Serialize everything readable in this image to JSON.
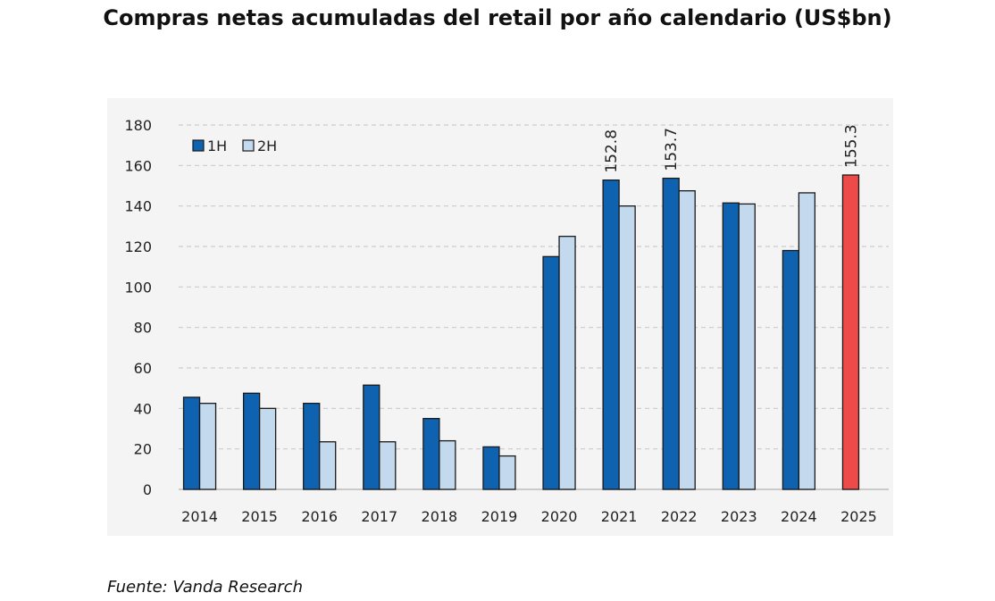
{
  "title": "Compras netas acumuladas del retail por año calendario (US$bn)",
  "source": "Fuente: Vanda Research",
  "colors": {
    "h1": "#0f62b0",
    "h2": "#c3d9ee",
    "highlight": "#ef4a4a",
    "grid": "#cccccc",
    "plot_bg": "#f4f4f4"
  },
  "chart_data": {
    "type": "bar",
    "title": "Compras netas acumuladas del retail por año calendario (US$bn)",
    "xlabel": "",
    "ylabel": "",
    "ylim": [
      0,
      180
    ],
    "yticks": [
      0,
      20,
      40,
      60,
      80,
      100,
      120,
      140,
      160,
      180
    ],
    "grid": true,
    "legend_position": "top-left",
    "categories": [
      "2014",
      "2015",
      "2016",
      "2017",
      "2018",
      "2019",
      "2020",
      "2021",
      "2022",
      "2023",
      "2024",
      "2025"
    ],
    "series": [
      {
        "name": "1H",
        "values": [
          45.5,
          47.5,
          42.5,
          51.5,
          35,
          21,
          115,
          152.8,
          153.7,
          141.5,
          118,
          155.3
        ]
      },
      {
        "name": "2H",
        "values": [
          42.5,
          40,
          23.5,
          23.5,
          24,
          16.5,
          125,
          140,
          147.5,
          141,
          146.5,
          null
        ]
      }
    ],
    "annotations": [
      {
        "category": "2021",
        "series": "1H",
        "text": "152.8"
      },
      {
        "category": "2022",
        "series": "1H",
        "text": "153.7"
      },
      {
        "category": "2025",
        "series": "1H",
        "text": "155.3"
      }
    ],
    "highlight": {
      "category": "2025",
      "series": "1H"
    }
  }
}
